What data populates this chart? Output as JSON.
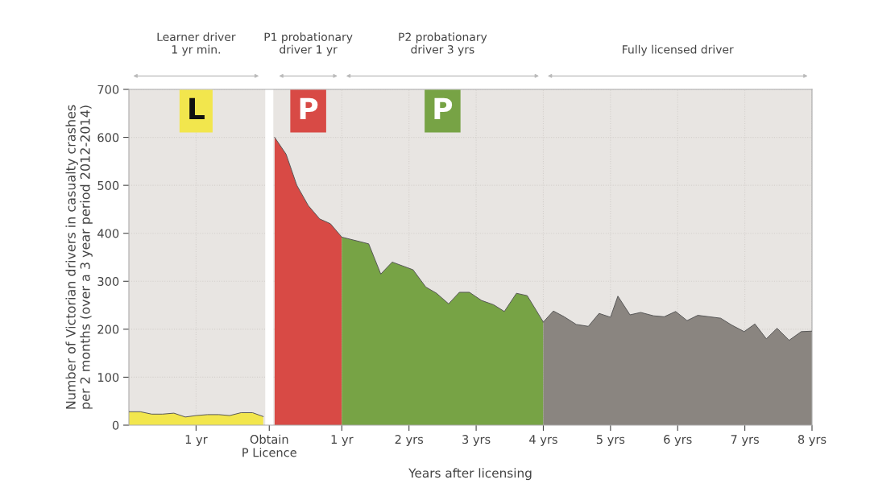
{
  "chart_data": {
    "type": "area",
    "xlabel": "Years after licensing",
    "ylabel": "Number of Victorian drivers in casualty crashes\nper 2 months (over a 3 year period 2012-2014)",
    "xlim": [
      -2.17,
      8
    ],
    "ylim": [
      0,
      700
    ],
    "yticks": [
      0,
      100,
      200,
      300,
      400,
      500,
      600,
      700
    ],
    "xticks": [
      {
        "value": -1.17,
        "label": "1 yr"
      },
      {
        "value": -0.08,
        "label": "Obtain\nP Licence"
      },
      {
        "value": 1,
        "label": "1 yr"
      },
      {
        "value": 2,
        "label": "2 yrs"
      },
      {
        "value": 3,
        "label": "3 yrs"
      },
      {
        "value": 4,
        "label": "4 yrs"
      },
      {
        "value": 5,
        "label": "5 yrs"
      },
      {
        "value": 6,
        "label": "6 yrs"
      },
      {
        "value": 7,
        "label": "7 yrs"
      },
      {
        "value": 8,
        "label": "8 yrs"
      }
    ],
    "grid": true,
    "series": [
      {
        "color": "#f2e64d",
        "x": [
          -2.17,
          -2.0,
          -1.83,
          -1.67,
          -1.5,
          -1.33,
          -1.17,
          -1.0,
          -0.83,
          -0.67,
          -0.5,
          -0.33,
          -0.17
        ],
        "values": [
          28,
          28,
          23,
          23,
          25,
          17,
          20,
          22,
          22,
          20,
          26,
          26,
          18
        ]
      },
      {
        "color": "#d84a45",
        "x": [
          0,
          0.17,
          0.33,
          0.5,
          0.67,
          0.83,
          1.0
        ],
        "values": [
          600,
          565,
          500,
          458,
          430,
          420,
          392
        ]
      },
      {
        "color": "#77a345",
        "x": [
          1,
          1.4,
          1.58,
          1.75,
          2.06,
          2.25,
          2.41,
          2.59,
          2.75,
          2.9,
          3.08,
          3.26,
          3.42,
          3.6,
          3.76,
          4.0
        ],
        "values": [
          392,
          378,
          315,
          340,
          324,
          288,
          275,
          253,
          277,
          277,
          260,
          251,
          237,
          275,
          270,
          215
        ]
      },
      {
        "color": "#8a8580",
        "x": [
          4,
          4.15,
          4.31,
          4.49,
          4.67,
          4.83,
          5.0,
          5.11,
          5.29,
          5.45,
          5.64,
          5.8,
          5.97,
          6.14,
          6.3,
          6.64,
          6.8,
          6.99,
          7.15,
          7.32,
          7.48,
          7.66,
          7.84,
          8.0
        ],
        "values": [
          215,
          238,
          226,
          210,
          206,
          233,
          225,
          269,
          230,
          235,
          228,
          226,
          237,
          218,
          229,
          223,
          209,
          195,
          211,
          180,
          202,
          177,
          195,
          196
        ]
      }
    ],
    "bands": [
      {
        "axis": "x",
        "from": -0.14,
        "to": -0.02,
        "color": "#ffffff"
      }
    ],
    "annotations": [
      "Learner driver\n1 yr min.",
      "P1 probationary\ndriver 1 yr",
      "P2 probationary\ndriver 3 yrs",
      "Fully licensed driver",
      "L",
      "P",
      "P"
    ]
  }
}
